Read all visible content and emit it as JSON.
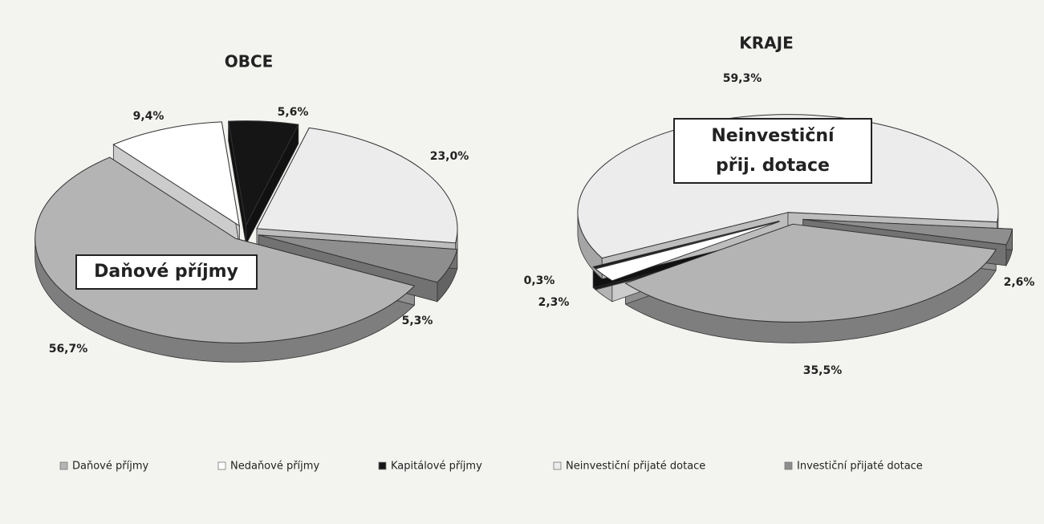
{
  "chart_data": [
    {
      "type": "pie",
      "title": "OBCE",
      "values": [
        56.7,
        9.4,
        5.6,
        23.0,
        5.3
      ],
      "value_labels": [
        "56,7%",
        "9,4%",
        "5,6%",
        "23,0%",
        "5,3%"
      ],
      "annotation": [
        "Daňové příjmy"
      ]
    },
    {
      "type": "pie",
      "title": "KRAJE",
      "values": [
        35.5,
        2.3,
        0.3,
        59.3,
        2.6
      ],
      "value_labels": [
        "35,5%",
        "2,3%",
        "0,3%",
        "59,3%",
        "2,6%"
      ],
      "annotation": [
        "Neinvestiční",
        "přij. dotace"
      ]
    }
  ],
  "legend": {
    "categories": [
      "Daňové příjmy",
      "Nedaňové příjmy",
      "Kapitálové příjmy",
      "Neinvestiční přijaté dotace",
      "Investiční přijaté dotace"
    ],
    "colors": [
      "#b4b4b4",
      "#ffffff",
      "#151515",
      "#ececec",
      "#8e8e8e"
    ]
  }
}
